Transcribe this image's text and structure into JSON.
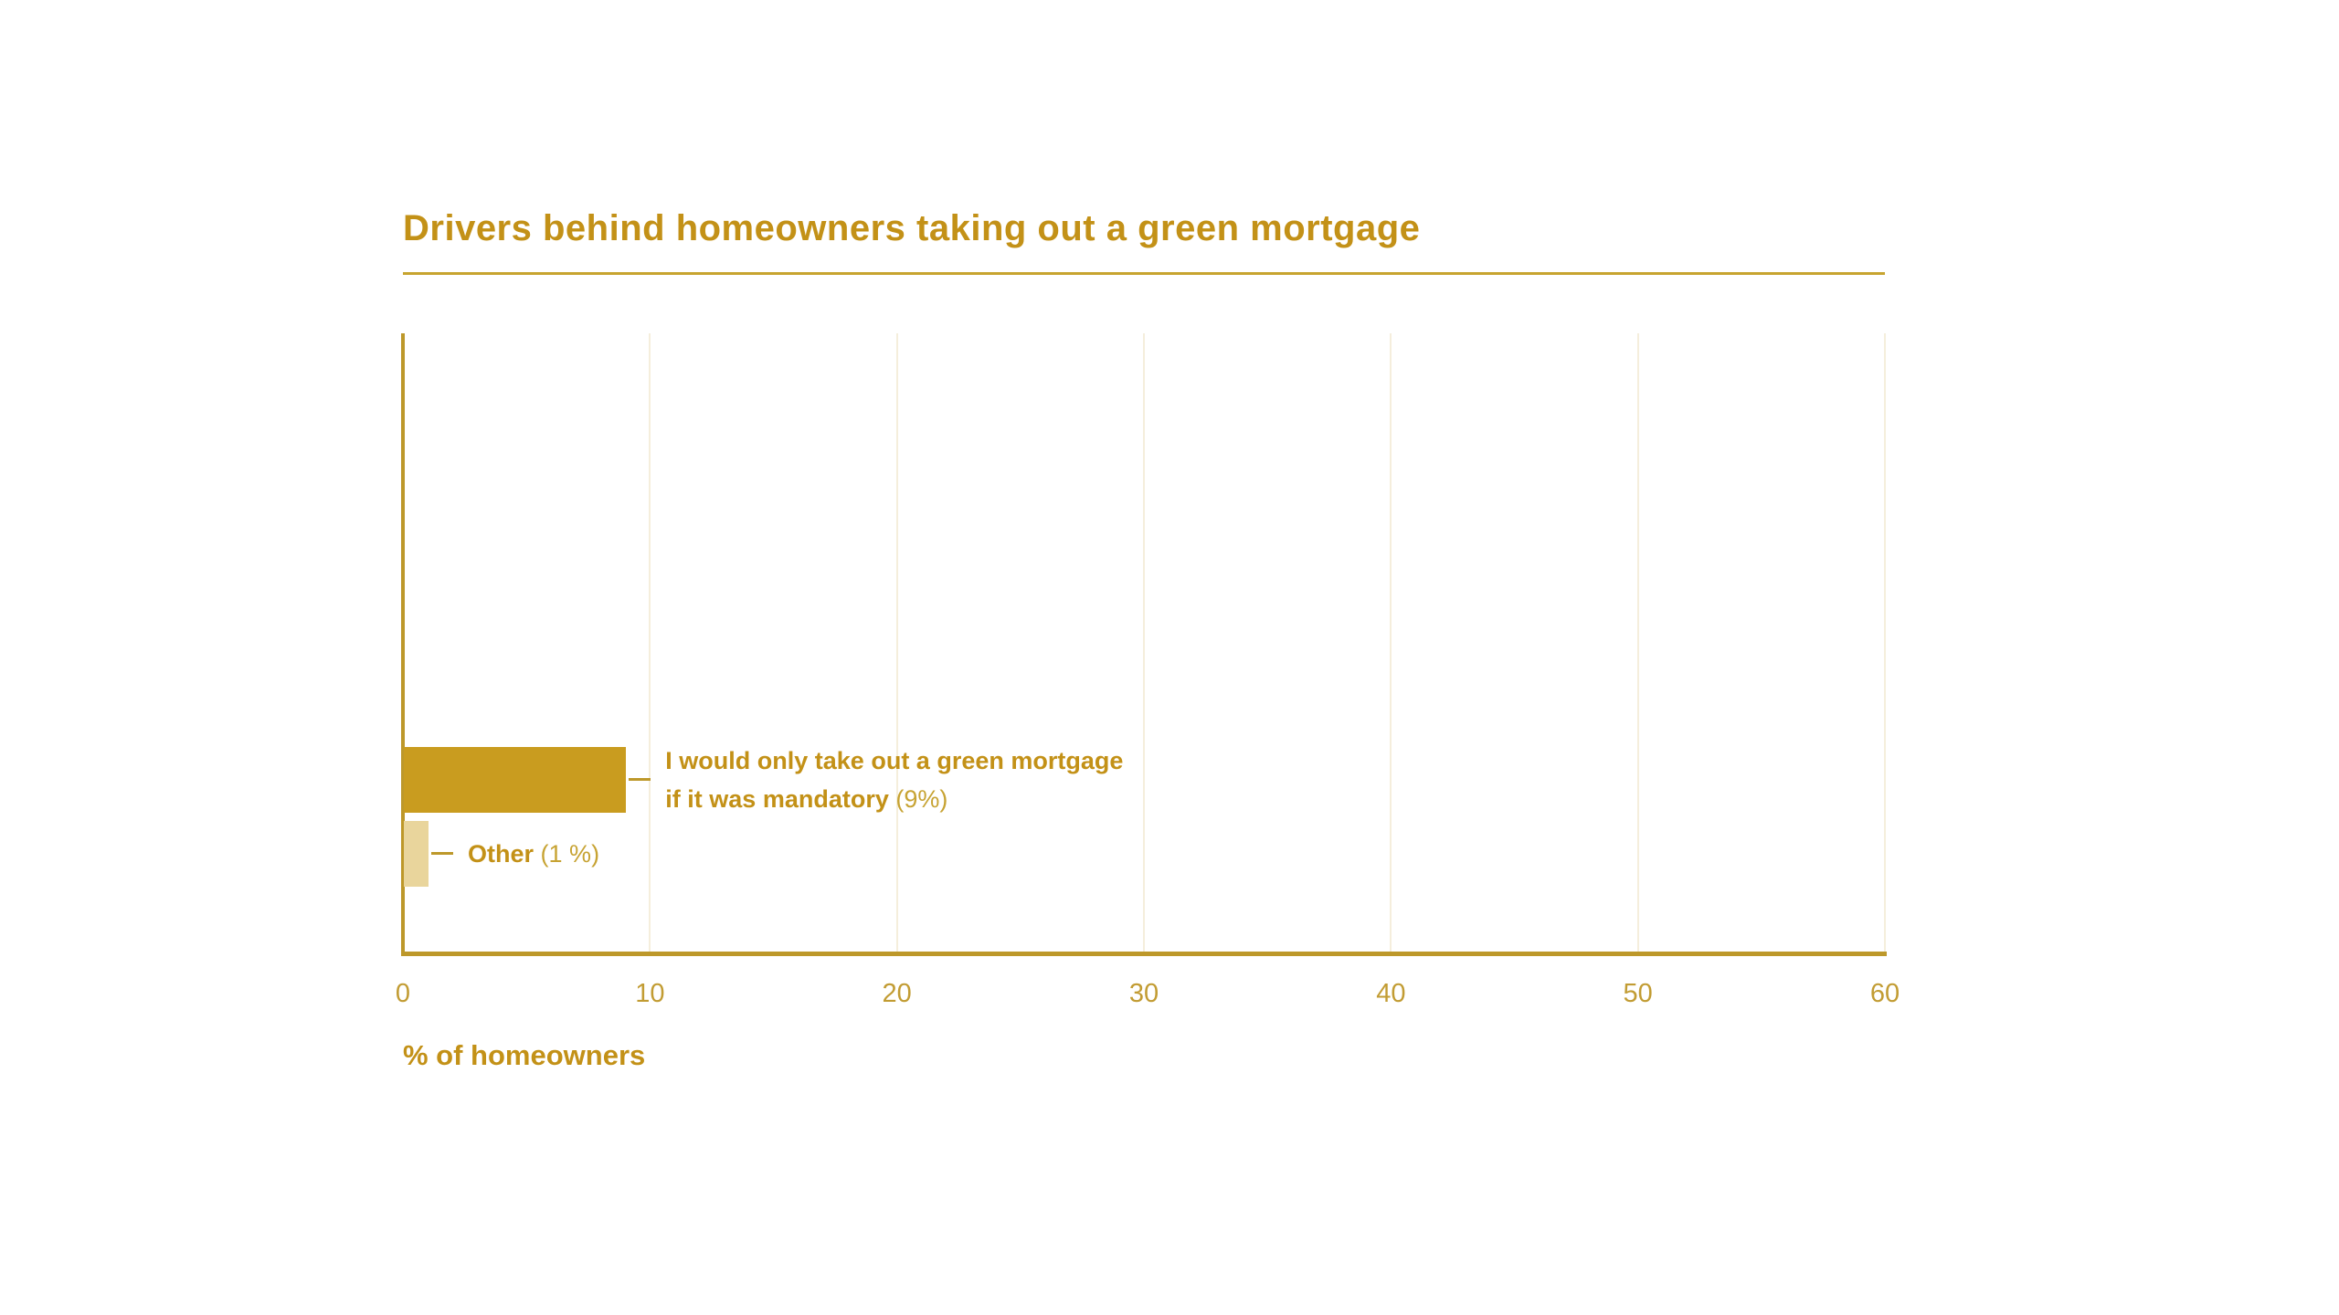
{
  "header": {
    "title": "Drivers behind homeowners taking out a green mortgage"
  },
  "chart_data": {
    "type": "bar",
    "orientation": "horizontal",
    "title": "Drivers behind homeowners taking out a green mortgage",
    "categories": [
      "I would only take out a green mortgage if it was mandatory",
      "Other"
    ],
    "values": [
      9,
      1
    ],
    "xlabel": "% of homeowners",
    "xlim": [
      0,
      60
    ],
    "xticks": [
      0,
      10,
      20,
      30,
      40,
      50,
      60
    ],
    "grid": "vertical",
    "legend": "none",
    "bars": [
      {
        "label": "I would only take out a green mortgage\nif it was mandatory",
        "note": "(9%)",
        "value": 9,
        "color": "#C99C1F"
      },
      {
        "label": "Other",
        "note": "(1 %)",
        "value": 1,
        "color": "#E9D59C"
      }
    ],
    "colors": {
      "accent_text": "#C39117",
      "bar_main": "#C99C1F",
      "bar_light": "#E9D59C",
      "axis_line": "#BD982A",
      "title_rule": "#C7A42F",
      "grid_line": "#F5EEDC",
      "tick_text": "#C29C33",
      "note_text": "#C7A333"
    }
  }
}
